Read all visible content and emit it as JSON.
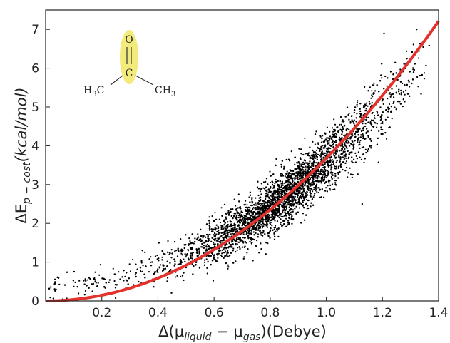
{
  "chart_data": {
    "type": "scatter",
    "xlabel": {
      "prefix": "Δ(μ",
      "sub1": "liquid",
      "mid": " − μ",
      "sub2": "gas",
      "suffix": ")(Debye)"
    },
    "ylabel": {
      "prefix": "ΔE",
      "sub": "p − cost",
      "suffix": "(kcal/mol)"
    },
    "xlim": [
      0.0,
      1.4
    ],
    "ylim": [
      0,
      7.5
    ],
    "xticks": [
      "0.2",
      "0.4",
      "0.6",
      "0.8",
      "1.0",
      "1.2",
      "1.4"
    ],
    "yticks": [
      "0",
      "1",
      "2",
      "3",
      "4",
      "5",
      "6",
      "7"
    ],
    "grid": false,
    "series": [
      {
        "kind": "scatter",
        "color": "#000000",
        "point_count": 6000,
        "density_trend": {
          "a": 3.6,
          "exponent": 2.0,
          "spread": 0.45
        },
        "x_density_peak": 0.85
      },
      {
        "kind": "fit-curve",
        "color": "#e3312b",
        "equation": "y = 3.68 · x^2",
        "coef": 3.68,
        "exponent": 2.0
      }
    ],
    "inset": {
      "molecule": "acetone",
      "atom_top": "O",
      "atom_center": "C",
      "group_left": {
        "main": "H",
        "sub": "3",
        "tail": "C"
      },
      "group_right": {
        "main": "CH",
        "sub": "3"
      },
      "highlight_color": "#f2ea7a",
      "oxygen_color": "#e3312b"
    }
  }
}
